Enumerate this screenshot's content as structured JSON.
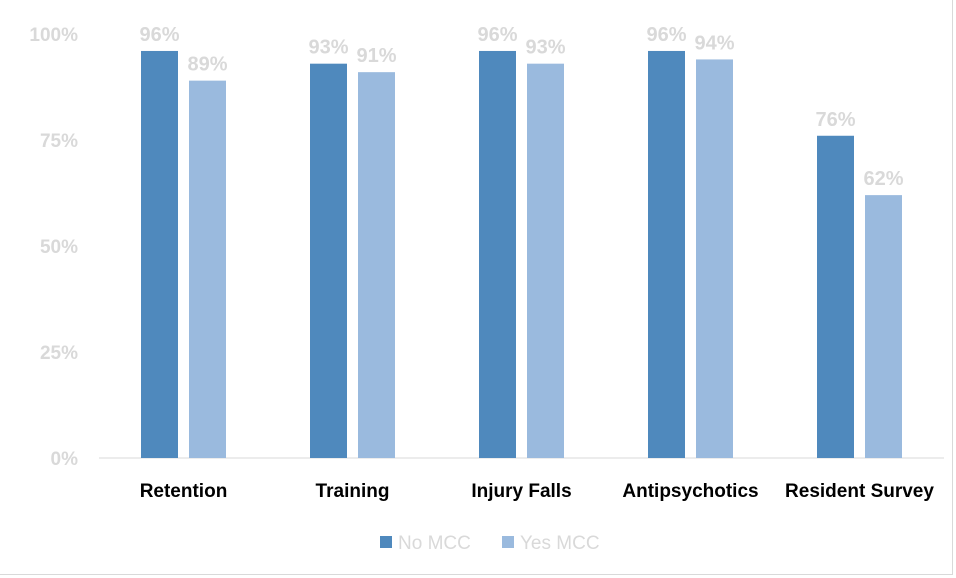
{
  "chart_data": {
    "type": "bar",
    "title": "",
    "xlabel": "",
    "ylabel": "",
    "categories": [
      "Retention",
      "Training",
      "Injury Falls",
      "Antipsychotics",
      "Resident Survey"
    ],
    "series": [
      {
        "name": "No MCC",
        "values": [
          96,
          93,
          96,
          96,
          76
        ],
        "color": "#4f89bd",
        "labels": [
          "96%",
          "93%",
          "96%",
          "96%",
          "76%"
        ]
      },
      {
        "name": "Yes MCC",
        "values": [
          89,
          91,
          93,
          94,
          62
        ],
        "color": "#9abade",
        "labels": [
          "89%",
          "91%",
          "93%",
          "94%",
          "62%"
        ]
      }
    ],
    "ylim": [
      0,
      100
    ],
    "yticks": [
      0,
      25,
      50,
      75,
      100
    ],
    "ytick_labels": [
      "0%",
      "25%",
      "50%",
      "75%",
      "100%"
    ],
    "legend_position": "bottom",
    "grid": false
  }
}
